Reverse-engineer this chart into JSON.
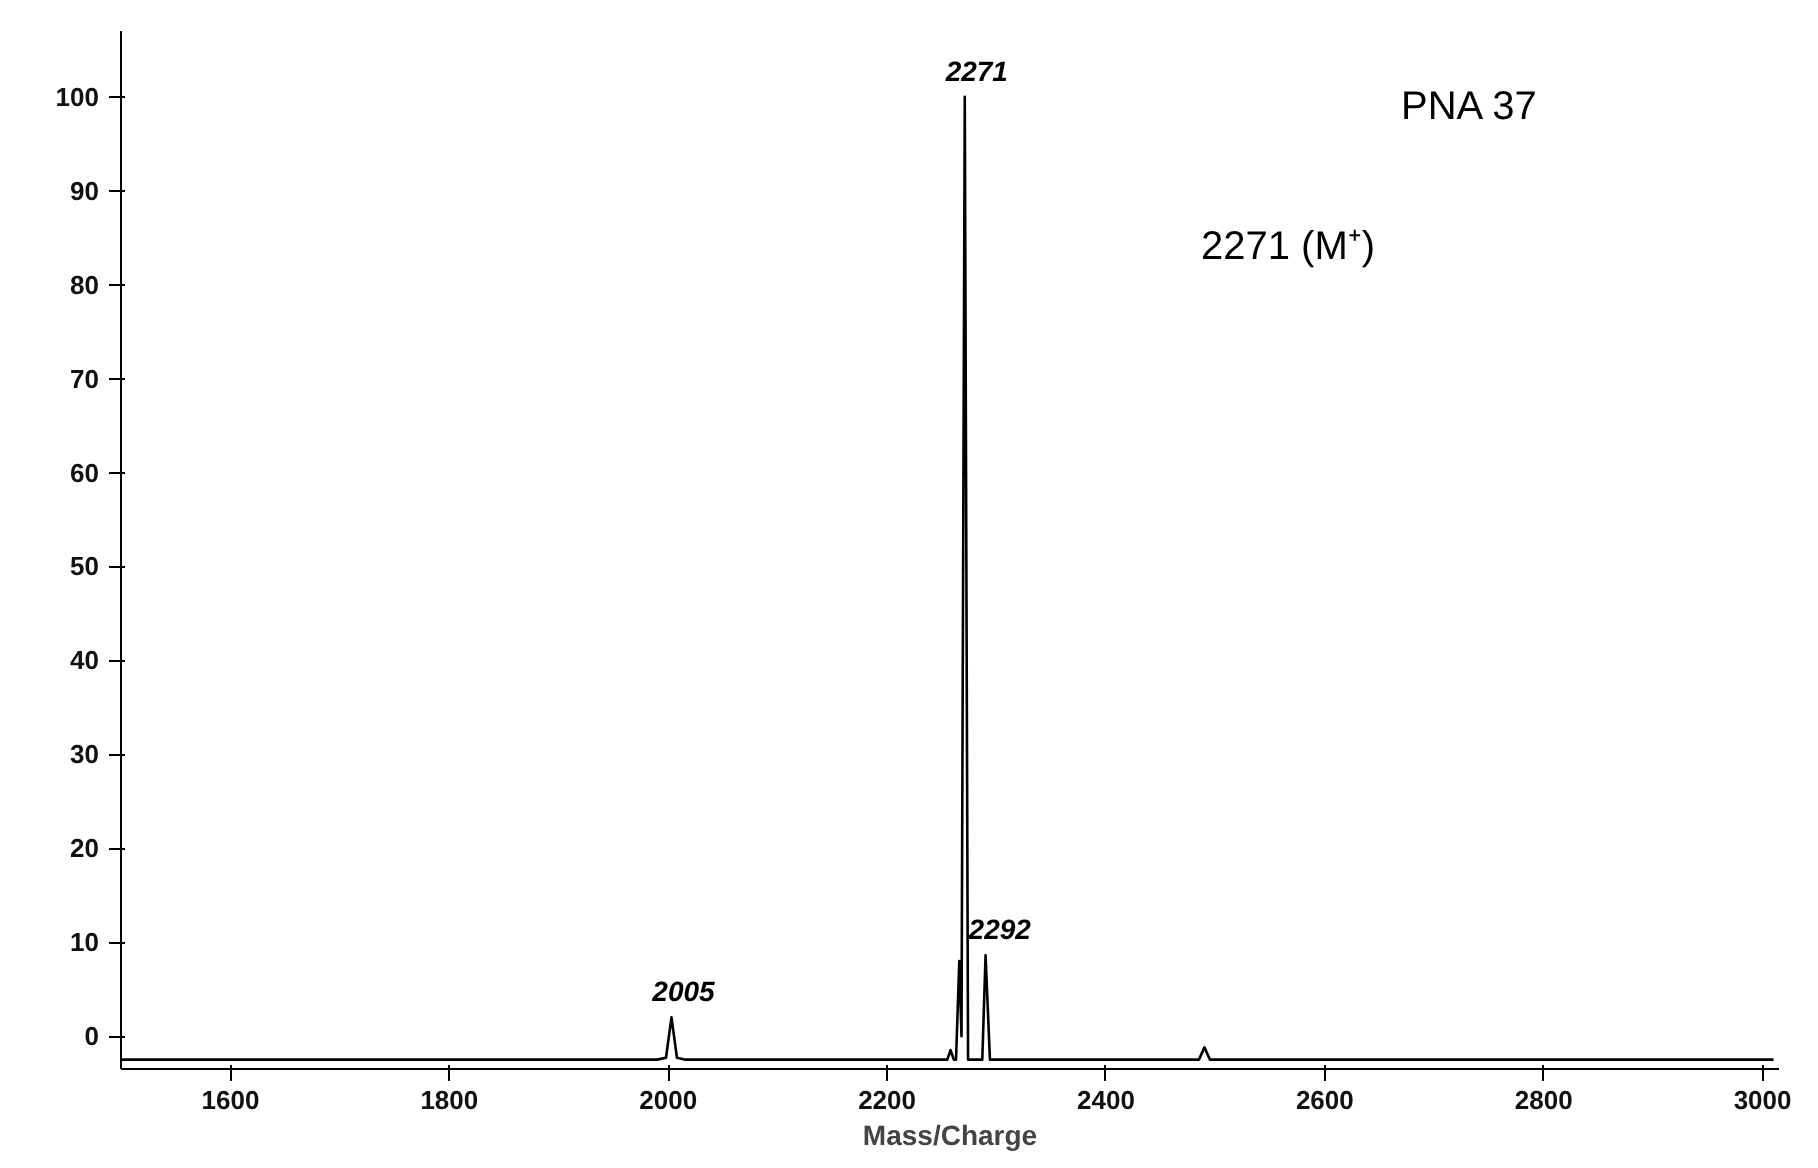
{
  "chart_data": {
    "type": "line",
    "xlabel": "Mass/Charge",
    "x": [
      1500,
      1700,
      1900,
      1990,
      1998,
      2003,
      2008,
      2015,
      2200,
      2255,
      2258,
      2261,
      2263,
      2266,
      2268,
      2271,
      2274,
      2287,
      2290,
      2294,
      2485,
      2490,
      2495,
      3010
    ],
    "series": [
      {
        "color": "#000000",
        "values": [
          -2.5,
          -2.5,
          -2.5,
          -2.5,
          -2.3,
          2,
          -2.3,
          -2.5,
          -2.5,
          -2.5,
          -1.5,
          -2.5,
          -2.5,
          8,
          0,
          100,
          -2.5,
          -2.5,
          8.6,
          -2.5,
          -2.5,
          -1.2,
          -2.5,
          -2.5
        ]
      }
    ],
    "xlim": [
      1500,
      3015
    ],
    "ylim": [
      -3.5,
      107
    ],
    "xticks": [
      1600,
      1800,
      2000,
      2200,
      2400,
      2600,
      2800,
      3000
    ],
    "yticks": [
      0,
      10,
      20,
      30,
      40,
      50,
      60,
      70,
      80,
      90,
      100
    ],
    "grid": false,
    "marker": "none",
    "line_style": "solid",
    "annotations": [
      {
        "text": "2271",
        "x": 2271,
        "y": 100
      },
      {
        "text": "2292",
        "x": 2292,
        "y": 8.6
      },
      {
        "text": "2005",
        "x": 2003,
        "y": 2
      },
      "PNA 37",
      "2271 (M⁺)"
    ]
  }
}
